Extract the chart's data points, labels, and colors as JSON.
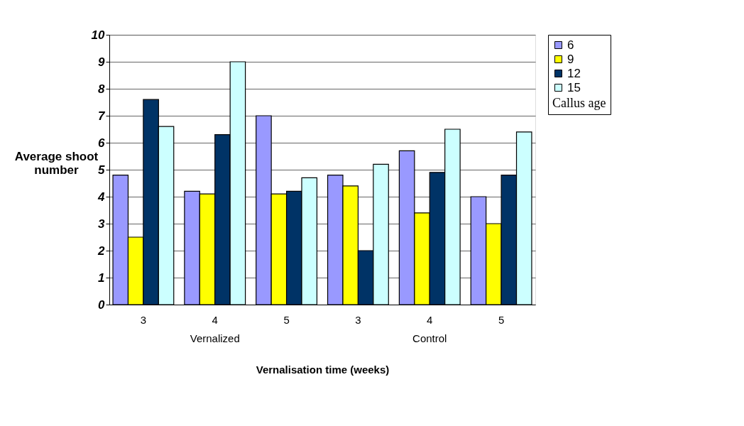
{
  "chart_data": {
    "type": "bar",
    "categories": [
      "3",
      "4",
      "5",
      "3",
      "4",
      "5"
    ],
    "series": [
      {
        "name": "6",
        "color": "#9999ff",
        "values": [
          4.8,
          4.2,
          7.0,
          4.8,
          5.7,
          4.0
        ]
      },
      {
        "name": "9",
        "color": "#ffff00",
        "values": [
          2.5,
          4.1,
          4.1,
          4.4,
          3.4,
          3.0
        ]
      },
      {
        "name": "12",
        "color": "#003366",
        "values": [
          7.6,
          6.3,
          4.2,
          2.0,
          4.9,
          4.8
        ]
      },
      {
        "name": "15",
        "color": "#ccffff",
        "values": [
          6.6,
          9.0,
          4.7,
          5.2,
          6.5,
          6.4
        ]
      }
    ],
    "ylim": [
      0,
      10
    ],
    "yticks": [
      0,
      1,
      2,
      3,
      4,
      5,
      6,
      7,
      8,
      9,
      10
    ],
    "ylabel": "Average shoot number",
    "xlabel": "Vernalisation time (weeks)",
    "legend_title": "Callus age",
    "legend": "right",
    "grid": "y",
    "annotations": [
      "Vernalized",
      "Control"
    ]
  }
}
